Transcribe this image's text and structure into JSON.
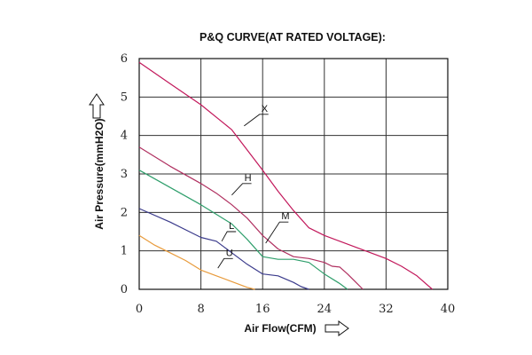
{
  "chart_data": {
    "type": "line",
    "title": "P&Q CURVE(AT RATED VOLTAGE):",
    "xlabel": "Air Flow(CFM)",
    "ylabel": "Air Pressure(mmH2O)",
    "xlim": [
      0,
      40
    ],
    "ylim": [
      0,
      6
    ],
    "xticks": [
      "0",
      "8",
      "16",
      "24",
      "32",
      "40"
    ],
    "yticks": [
      "0",
      "1",
      "2",
      "3",
      "4",
      "5",
      "6"
    ],
    "grid": true,
    "series": [
      {
        "name": "X",
        "color": "#c2185b",
        "x": [
          0,
          4,
          8,
          12,
          16,
          18,
          20,
          22,
          24,
          26,
          28,
          30,
          32,
          34,
          36,
          38
        ],
        "y": [
          5.9,
          5.35,
          4.8,
          4.15,
          3.1,
          2.55,
          2.05,
          1.6,
          1.4,
          1.25,
          1.1,
          0.95,
          0.8,
          0.6,
          0.35,
          0
        ]
      },
      {
        "name": "H",
        "color": "#b03060",
        "x": [
          0,
          4,
          8,
          10,
          12,
          14,
          16,
          18,
          20,
          22,
          24,
          25,
          26,
          27,
          28,
          29
        ],
        "y": [
          3.7,
          3.2,
          2.75,
          2.5,
          2.2,
          1.85,
          1.4,
          1.05,
          0.85,
          0.8,
          0.7,
          0.6,
          0.58,
          0.4,
          0.2,
          0
        ]
      },
      {
        "name": "M",
        "color": "#2e9e6b",
        "x": [
          0,
          4,
          8,
          10,
          12,
          14,
          16,
          18,
          20,
          22,
          24,
          26,
          27
        ],
        "y": [
          3.1,
          2.65,
          2.2,
          1.95,
          1.7,
          1.3,
          0.85,
          0.78,
          0.78,
          0.7,
          0.4,
          0.15,
          0
        ]
      },
      {
        "name": "L",
        "color": "#3b3b8c",
        "x": [
          0,
          4,
          8,
          10,
          11,
          12,
          14,
          16,
          18,
          20,
          21,
          22
        ],
        "y": [
          2.1,
          1.75,
          1.35,
          1.25,
          1.1,
          0.95,
          0.65,
          0.4,
          0.35,
          0.18,
          0.07,
          0
        ]
      },
      {
        "name": "U",
        "color": "#e89b3c",
        "x": [
          0,
          2,
          4,
          6,
          8,
          10,
          12,
          14,
          15
        ],
        "y": [
          1.4,
          1.15,
          0.95,
          0.75,
          0.5,
          0.35,
          0.2,
          0.05,
          0
        ]
      }
    ]
  }
}
